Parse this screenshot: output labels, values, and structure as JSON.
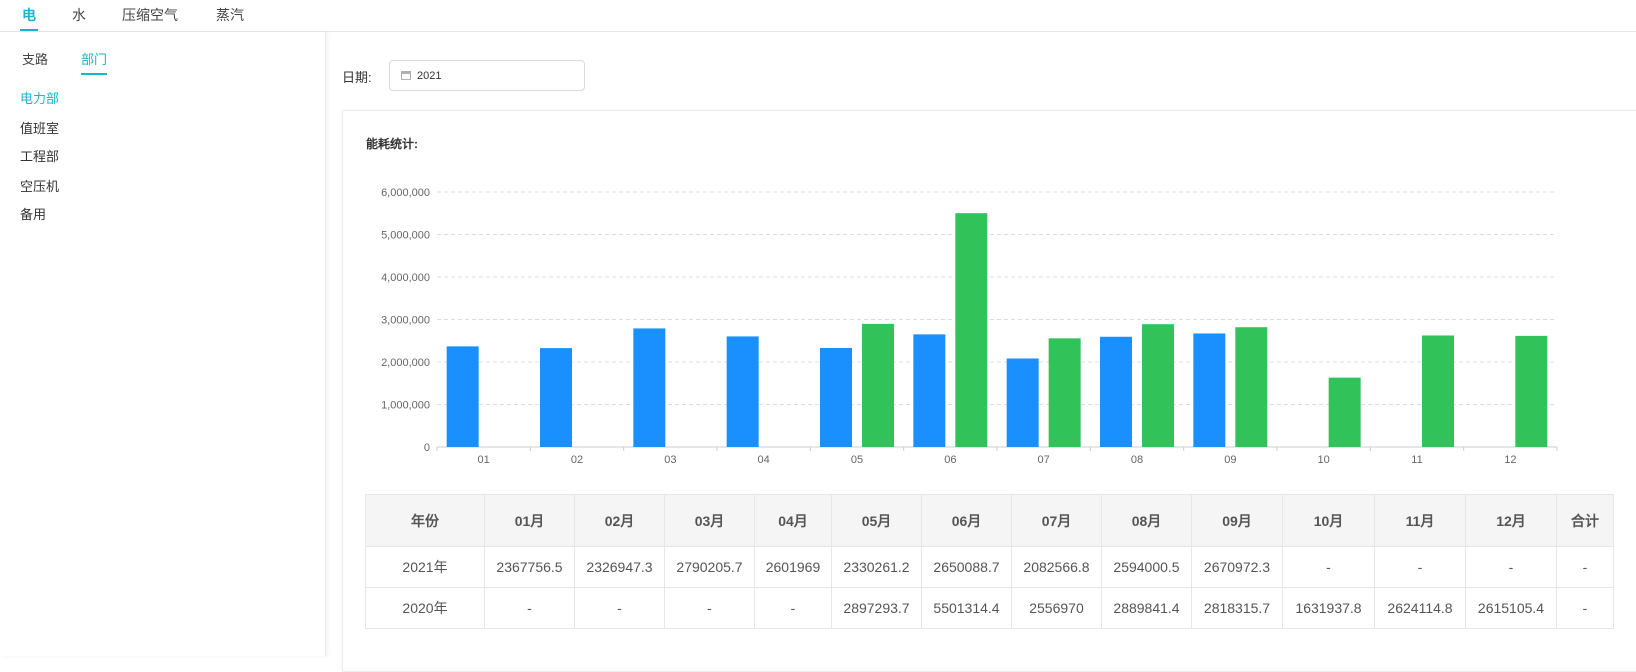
{
  "top_tabs": [
    {
      "label": "电"
    },
    {
      "label": "水"
    },
    {
      "label": "压缩空气"
    },
    {
      "label": "蒸汽"
    }
  ],
  "sub_tabs": [
    {
      "label": "支路"
    },
    {
      "label": "部门"
    }
  ],
  "departments": [
    {
      "label": "电力部"
    },
    {
      "label": "值班室"
    },
    {
      "label": "工程部"
    },
    {
      "label": "空压机"
    },
    {
      "label": "备用"
    }
  ],
  "filter": {
    "date_label": "日期:",
    "date_value": "2021",
    "date_icon": "calendar-icon"
  },
  "card": {
    "title": "能耗统计:"
  },
  "colors": {
    "accent": "#1ab5c6",
    "series_2021": "#1a90ff",
    "series_2020": "#31c25a"
  },
  "chart_data": {
    "type": "bar",
    "categories": [
      "01",
      "02",
      "03",
      "04",
      "05",
      "06",
      "07",
      "08",
      "09",
      "10",
      "11",
      "12"
    ],
    "series": [
      {
        "name": "2021年",
        "values": [
          2367756.5,
          2326947.3,
          2790205.7,
          2601969,
          2330261.2,
          2650088.7,
          2082566.8,
          2594000.5,
          2670972.3,
          null,
          null,
          null
        ]
      },
      {
        "name": "2020年",
        "values": [
          null,
          null,
          null,
          null,
          2897293.7,
          5501314.4,
          2556970,
          2889841.4,
          2818315.7,
          1631937.8,
          2624114.8,
          2615105.4
        ]
      }
    ],
    "y_ticks": [
      "0",
      "1,000,000",
      "2,000,000",
      "3,000,000",
      "4,000,000",
      "5,000,000",
      "6,000,000"
    ],
    "ylim": [
      0,
      6000000
    ],
    "grid": true,
    "legend": "none"
  },
  "table": {
    "headers": [
      "年份",
      "01月",
      "02月",
      "03月",
      "04月",
      "05月",
      "06月",
      "07月",
      "08月",
      "09月",
      "10月",
      "11月",
      "12月",
      "合计"
    ],
    "rows": [
      [
        "2021年",
        "2367756.5",
        "2326947.3",
        "2790205.7",
        "2601969",
        "2330261.2",
        "2650088.7",
        "2082566.8",
        "2594000.5",
        "2670972.3",
        "-",
        "-",
        "-",
        "-"
      ],
      [
        "2020年",
        "-",
        "-",
        "-",
        "-",
        "2897293.7",
        "5501314.4",
        "2556970",
        "2889841.4",
        "2818315.7",
        "1631937.8",
        "2624114.8",
        "2615105.4",
        "-"
      ]
    ]
  }
}
